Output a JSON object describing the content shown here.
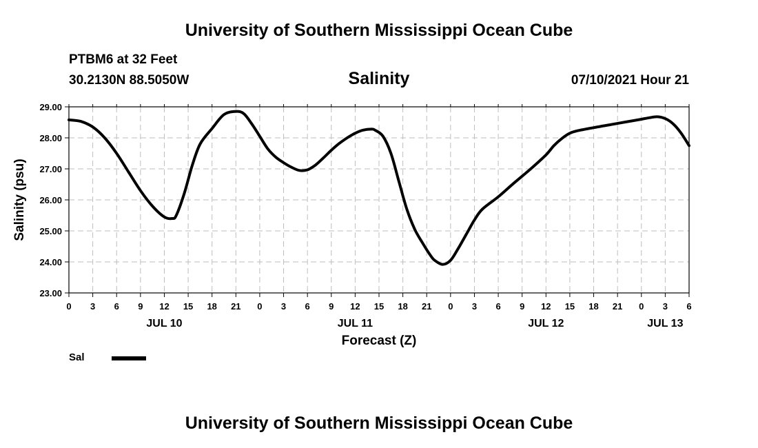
{
  "header": {
    "title": "University of Southern Mississippi Ocean Cube",
    "station": "PTBM6 at 32 Feet",
    "coordinates": "30.2130N  88.5050W",
    "chart_title": "Salinity",
    "timestamp": "07/10/2021 Hour 21"
  },
  "footer": {
    "title": "University of Southern Mississippi Ocean Cube"
  },
  "legend": {
    "label": "Sal"
  },
  "colors": {
    "line": "#000000",
    "grid": "#bdbdbd",
    "background": "#ffffff"
  },
  "chart_data": {
    "type": "line",
    "title": "Salinity",
    "xlabel": "Forecast (Z)",
    "ylabel": "Salinity (psu)",
    "ylim": [
      23.0,
      29.0
    ],
    "xlim": [
      0,
      78
    ],
    "yticks": [
      "23.00",
      "24.00",
      "25.00",
      "26.00",
      "27.00",
      "28.00",
      "29.00"
    ],
    "xtick_labels": [
      "0",
      "3",
      "6",
      "9",
      "12",
      "15",
      "18",
      "21",
      "0",
      "3",
      "6",
      "9",
      "12",
      "15",
      "18",
      "21",
      "0",
      "3",
      "6",
      "9",
      "12",
      "15",
      "18",
      "21",
      "0",
      "3",
      "6"
    ],
    "date_labels": [
      {
        "label": "JUL 10",
        "hour": 12
      },
      {
        "label": "JUL 11",
        "hour": 36
      },
      {
        "label": "JUL 12",
        "hour": 60
      },
      {
        "label": "JUL 13",
        "hour": 75
      }
    ],
    "grid": true,
    "series": [
      {
        "name": "Sal",
        "x": [
          0,
          1.5,
          3,
          4.5,
          6,
          7.5,
          9,
          10.5,
          12,
          13,
          13.5,
          14.5,
          15.5,
          16.5,
          18,
          19.5,
          21,
          22,
          23,
          24,
          25,
          26,
          27,
          28,
          29,
          30,
          31,
          32,
          33,
          34,
          35,
          36,
          37,
          38,
          38.5,
          39.5,
          40.5,
          41.5,
          42.5,
          43.5,
          44.5,
          45.5,
          46,
          47,
          48,
          49,
          50,
          51,
          52,
          54,
          56,
          58,
          60,
          61,
          62,
          63,
          64,
          66,
          68,
          70,
          72,
          73,
          74,
          75,
          76,
          77,
          78
        ],
        "values": [
          28.58,
          28.53,
          28.35,
          28.0,
          27.5,
          26.9,
          26.3,
          25.8,
          25.45,
          25.4,
          25.5,
          26.2,
          27.1,
          27.8,
          28.3,
          28.75,
          28.85,
          28.78,
          28.45,
          28.05,
          27.65,
          27.38,
          27.2,
          27.05,
          26.95,
          26.97,
          27.12,
          27.35,
          27.6,
          27.82,
          28.0,
          28.15,
          28.25,
          28.28,
          28.25,
          28.05,
          27.5,
          26.6,
          25.7,
          25.05,
          24.6,
          24.2,
          24.05,
          23.92,
          24.05,
          24.45,
          24.9,
          25.35,
          25.7,
          26.1,
          26.55,
          26.98,
          27.45,
          27.75,
          27.98,
          28.15,
          28.23,
          28.33,
          28.42,
          28.51,
          28.6,
          28.65,
          28.68,
          28.62,
          28.45,
          28.15,
          27.75
        ]
      }
    ]
  }
}
